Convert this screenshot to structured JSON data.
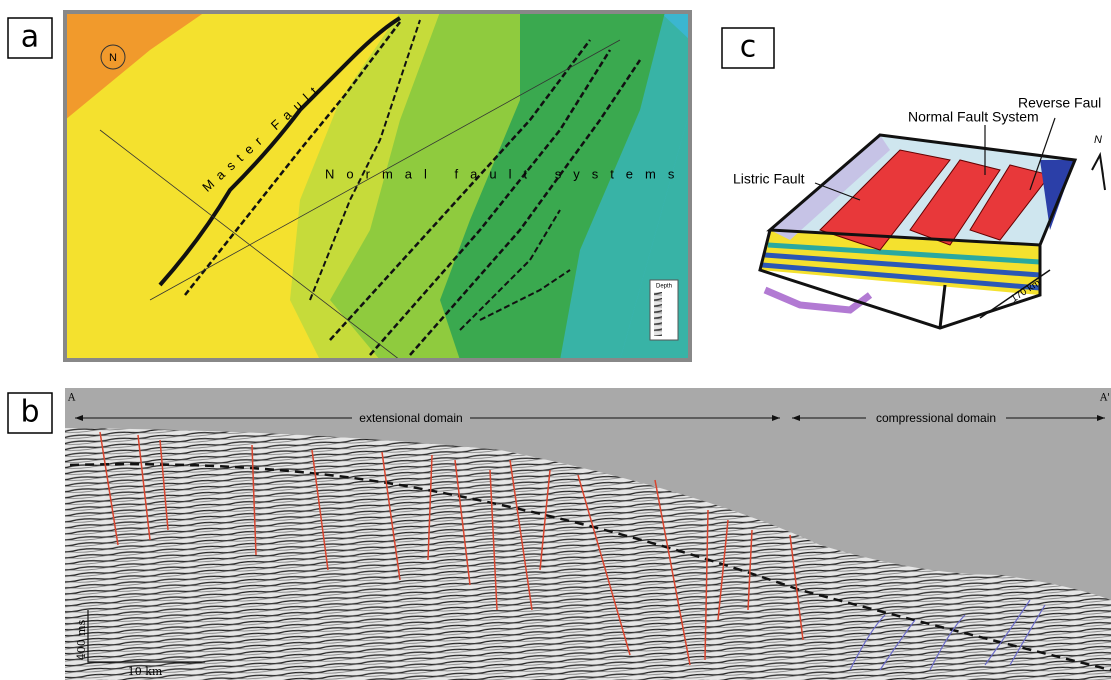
{
  "panels": {
    "a": {
      "label": "a",
      "master_fault": "Master Fault",
      "normal_fault_systems": "Normal fault systems",
      "north": "N",
      "legend_title": "Depth"
    },
    "c": {
      "label": "c",
      "listric_fault": "Listric Fault",
      "normal_fault_system": "Normal Fault System",
      "reverse_fault": "Reverse Faul",
      "north": "N",
      "scale": "170 km"
    },
    "b": {
      "label": "b",
      "start": "A",
      "end": "A'",
      "extensional": "extensional domain",
      "compressional": "compressional domain",
      "vertical_scale": "400 ms",
      "horizontal_scale": "10 km"
    }
  }
}
